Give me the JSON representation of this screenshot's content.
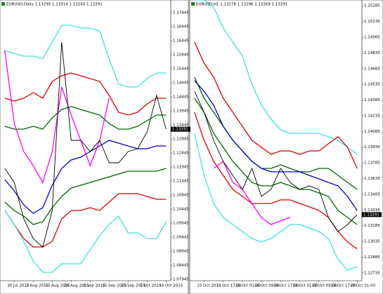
{
  "chart_data": [
    {
      "type": "line",
      "title": "EURUSD,Daily 1.13295 1.13314 1.13245 1.13291",
      "categories": [
        null,
        "30 Jul 2015",
        null,
        "3 Aug 2015",
        null,
        "13 Aug 2015",
        null,
        "25 Aug 2015",
        null,
        "3 Sep 2015",
        null,
        "15 Sep 2015",
        null,
        "25 Sep 2015",
        null,
        "7 Oct 2015",
        null,
        "19 Oct 2015"
      ],
      "ylim": [
        1.07895,
        1.17895
      ],
      "yticks": [
        1.17445,
        1.16945,
        1.16445,
        1.15945,
        1.15445,
        1.14945,
        1.14445,
        1.13945,
        1.13445,
        1.12945,
        1.12445,
        1.11945,
        1.11445,
        1.10945,
        1.10445,
        1.09945,
        1.09445,
        1.08945,
        1.08445,
        1.07945
      ],
      "last_price": 1.13291,
      "series": [
        {
          "color": "#40e0e0",
          "values": [
            1.16095,
            1.15995,
            1.15895,
            1.15895,
            1.15795,
            1.16395,
            1.16995,
            1.16995,
            1.16895,
            1.16895,
            1.16795,
            1.15795,
            1.14895,
            1.14795,
            1.14795,
            1.15095,
            1.15295,
            1.15295
          ]
        },
        {
          "color": "#e00000",
          "values": [
            1.14395,
            1.14295,
            1.14395,
            1.14595,
            1.14395,
            1.14995,
            1.15195,
            1.15295,
            1.15195,
            1.15095,
            1.14995,
            1.14495,
            1.13895,
            1.13795,
            1.13895,
            1.14195,
            1.14395,
            1.14395
          ]
        },
        {
          "color": "#006400",
          "values": [
            1.13395,
            1.13295,
            1.13295,
            1.13395,
            1.13295,
            1.13695,
            1.13995,
            1.14095,
            1.13995,
            1.13895,
            1.13795,
            1.13495,
            1.13295,
            1.13295,
            1.13395,
            1.13595,
            1.13795,
            1.13795
          ]
        },
        {
          "color": "#0000cd",
          "values": [
            1.11495,
            1.11095,
            1.10595,
            1.10295,
            1.10495,
            1.11295,
            1.11895,
            1.12195,
            1.12295,
            1.12495,
            1.12695,
            1.12895,
            1.12795,
            1.12695,
            1.12595,
            1.12595,
            1.12695,
            1.12695
          ]
        },
        {
          "color": "#006400",
          "values": [
            1.10695,
            1.10395,
            1.10195,
            1.09895,
            1.09995,
            1.10495,
            1.10895,
            1.11195,
            1.11295,
            1.11395,
            1.11495,
            1.11595,
            1.11695,
            1.11795,
            1.11795,
            1.11795,
            1.11795,
            1.11895
          ]
        },
        {
          "color": "#e00000",
          "values": [
            1.10395,
            1.09895,
            1.09395,
            1.09095,
            1.09095,
            1.09295,
            1.10095,
            1.10395,
            1.10395,
            1.10495,
            1.10395,
            1.10695,
            1.10995,
            1.10995,
            1.10995,
            1.10895,
            1.10795,
            1.10795
          ]
        },
        {
          "color": "#40e0e0",
          "values": [
            1.10395,
            1.09895,
            1.09295,
            1.08595,
            1.08195,
            1.08195,
            1.08495,
            1.08495,
            1.08495,
            1.08995,
            1.09495,
            1.09895,
            1.10195,
            1.09595,
            1.09595,
            1.09395,
            1.09395,
            1.09995
          ]
        },
        {
          "color": "#ff00ff",
          "values": [
            1.16095,
            1.13495,
            1.12495,
            1.11995,
            1.11395,
            1.12495,
            1.14795,
            1.13795,
            1.12895,
            1.11995,
            1.12895,
            1.14395,
            null,
            null,
            null,
            null,
            null,
            null
          ]
        },
        {
          "color": "#000000",
          "values": [
            1.11895,
            1.11395,
            1.10095,
            1.09395,
            1.09095,
            1.10395,
            1.16395,
            1.12895,
            1.12895,
            1.12495,
            1.12895,
            1.12095,
            1.12095,
            1.12495,
            1.12595,
            1.13195,
            1.14495,
            1.13295
          ]
        }
      ]
    },
    {
      "type": "line",
      "title": "EURUSD,H1 1.13278 1.13296 1.13269 1.13291",
      "categories": [
        null,
        "15 Oct 2015",
        null,
        "15 Oct 17:00",
        null,
        "16 Oct 01:00",
        null,
        "16 Oct 09:00",
        null,
        "16 Oct 17:00",
        null,
        "19 Oct 01:00",
        null,
        "19 Oct 09:00",
        null,
        "19 Oct 17:00",
        null,
        "20 Oct 01:00"
      ],
      "ylim": [
        1.1266,
        1.1534
      ],
      "yticks": [
        1.15285,
        1.15135,
        1.14985,
        1.14835,
        1.14685,
        1.14535,
        1.14385,
        1.14235,
        1.14085,
        1.13935,
        1.13785,
        1.13635,
        1.13485,
        1.13335,
        1.13185,
        1.13035,
        1.12885,
        1.12735
      ],
      "last_price": 1.13291,
      "series": [
        {
          "color": "#40e0e0",
          "values": [
            1.1534,
            1.1534,
            1.15273,
            1.15072,
            1.14938,
            1.14804,
            1.14536,
            1.14335,
            1.14201,
            1.14101,
            1.14067,
            1.14067,
            1.14067,
            1.14067,
            1.14034,
            1.14,
            1.13933,
            1.13866
          ]
        },
        {
          "color": "#e00000",
          "values": [
            1.14938,
            1.14737,
            1.14603,
            1.14402,
            1.14268,
            1.14134,
            1.14,
            1.13933,
            1.13866,
            1.13899,
            1.13899,
            1.13866,
            1.13899,
            1.13899,
            1.13967,
            1.14034,
            1.13933,
            1.13732
          ]
        },
        {
          "color": "#006400",
          "values": [
            1.14603,
            1.14402,
            1.14268,
            1.14134,
            1.14,
            1.13899,
            1.13799,
            1.13732,
            1.13732,
            1.13766,
            1.13732,
            1.13699,
            1.13699,
            1.13732,
            1.13732,
            1.13665,
            1.13598,
            1.13531
          ]
        },
        {
          "color": "#0000cd",
          "values": [
            1.1457,
            1.14469,
            1.14335,
            1.14134,
            1.14,
            1.13899,
            1.13799,
            1.13732,
            1.13699,
            1.13699,
            1.13699,
            1.13699,
            1.13665,
            1.13632,
            1.13598,
            1.13565,
            1.13464,
            1.1333
          ]
        },
        {
          "color": "#006400",
          "values": [
            1.14402,
            1.14268,
            1.14067,
            1.13933,
            1.13799,
            1.13699,
            1.13598,
            1.13565,
            1.13565,
            1.13598,
            1.13565,
            1.13531,
            1.13531,
            1.13498,
            1.13464,
            1.1333,
            1.13263,
            1.13196
          ]
        },
        {
          "color": "#e00000",
          "values": [
            1.14268,
            1.14,
            1.13799,
            1.13665,
            1.13531,
            1.13464,
            1.13397,
            1.13397,
            1.13397,
            1.13431,
            1.13431,
            1.13397,
            1.13364,
            1.1333,
            1.13263,
            1.13129,
            1.13029,
            1.12962
          ]
        },
        {
          "color": "#40e0e0",
          "values": [
            1.14067,
            1.13665,
            1.13397,
            1.13263,
            1.13196,
            1.13129,
            1.13062,
            1.13029,
            1.13062,
            1.13129,
            1.13196,
            1.13196,
            1.13163,
            1.13129,
            1.13062,
            1.12861,
            1.12761,
            1.12794
          ]
        },
        {
          "color": "#ff00ff",
          "values": [
            null,
            null,
            1.13732,
            1.13799,
            1.13598,
            1.13531,
            1.13397,
            1.13263,
            1.13196,
            1.1323,
            1.13263,
            null,
            null,
            null,
            null,
            null,
            null,
            null
          ]
        },
        {
          "color": "#000000",
          "values": [
            1.14469,
            1.14268,
            1.14,
            1.13799,
            1.13665,
            1.13531,
            1.13732,
            1.13464,
            1.13531,
            1.13732,
            1.13598,
            1.13531,
            1.13565,
            1.13531,
            1.13263,
            1.13129,
            1.13196,
            1.1329
          ]
        }
      ]
    }
  ]
}
